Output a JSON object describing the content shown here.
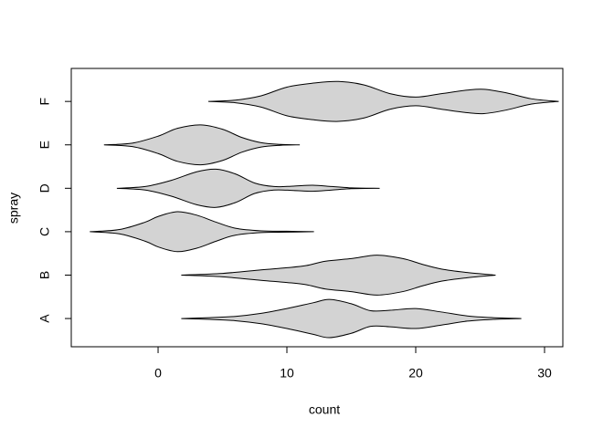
{
  "chart_data": {
    "type": "violin",
    "xlabel": "count",
    "ylabel": "spray",
    "categories": [
      "A",
      "B",
      "C",
      "D",
      "E",
      "F"
    ],
    "color": "#d3d3d3",
    "violins": [
      {
        "x": [
          1.8,
          4,
          6,
          8,
          10,
          12,
          13.3,
          15,
          16.5,
          18,
          20,
          22,
          24,
          26,
          28.2
        ],
        "widths": [
          0,
          0.02,
          0.05,
          0.12,
          0.23,
          0.36,
          0.44,
          0.34,
          0.18,
          0.19,
          0.23,
          0.15,
          0.06,
          0.02,
          0
        ]
      },
      {
        "x": [
          1.8,
          5,
          8,
          10,
          11.5,
          13,
          15,
          17,
          19,
          20.5,
          22,
          24,
          26.2
        ],
        "widths": [
          0,
          0.04,
          0.12,
          0.17,
          0.22,
          0.32,
          0.38,
          0.46,
          0.38,
          0.25,
          0.14,
          0.06,
          0
        ]
      },
      {
        "x": [
          -5.3,
          -3,
          -1,
          0,
          1.5,
          3,
          4.5,
          6,
          8,
          10,
          12.1
        ],
        "widths": [
          0,
          0.05,
          0.22,
          0.35,
          0.46,
          0.38,
          0.22,
          0.08,
          0.02,
          0.01,
          0
        ]
      },
      {
        "x": [
          -3.2,
          -1,
          1,
          3,
          4.5,
          6,
          7.5,
          9,
          10.5,
          12,
          13.5,
          15,
          17.2
        ],
        "widths": [
          0,
          0.04,
          0.18,
          0.38,
          0.44,
          0.33,
          0.12,
          0.04,
          0.05,
          0.07,
          0.04,
          0.01,
          0
        ]
      },
      {
        "x": [
          -4.2,
          -2,
          0,
          1.5,
          3.3,
          5,
          6.5,
          8,
          9.5,
          11
        ],
        "widths": [
          0,
          0.04,
          0.2,
          0.38,
          0.46,
          0.36,
          0.17,
          0.05,
          0.01,
          0
        ]
      },
      {
        "x": [
          3.9,
          6,
          8,
          10,
          12,
          14,
          16,
          18,
          20,
          22,
          24,
          25.3,
          27,
          29,
          31.1
        ],
        "widths": [
          0,
          0.03,
          0.13,
          0.33,
          0.42,
          0.46,
          0.38,
          0.18,
          0.1,
          0.18,
          0.26,
          0.28,
          0.2,
          0.06,
          0
        ]
      }
    ],
    "xlim": [
      -6.74,
      31.42
    ],
    "xticks": [
      0,
      10,
      20,
      30
    ],
    "ylim": [
      0.35,
      6.76
    ]
  }
}
